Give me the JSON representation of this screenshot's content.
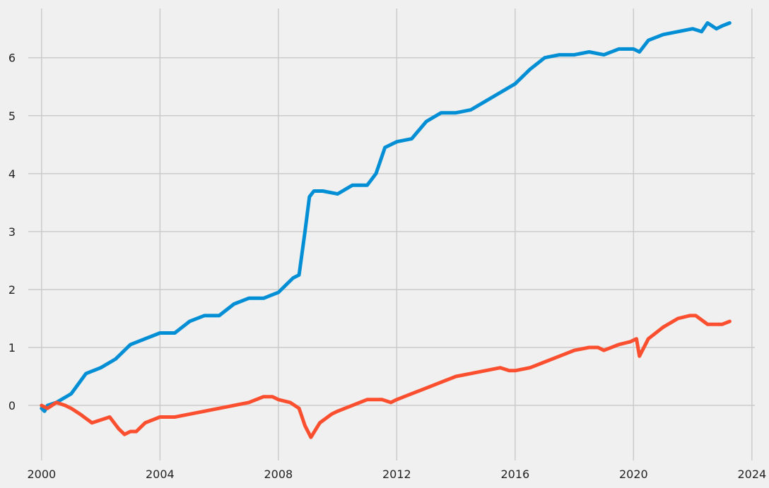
{
  "chart_data": {
    "type": "line",
    "title": "",
    "xlabel": "",
    "ylabel": "",
    "grid": true,
    "legend": "none",
    "xlim": [
      1999.55,
      2024.1
    ],
    "ylim": [
      -0.95,
      6.85
    ],
    "x_ticks": [
      {
        "value": 2000,
        "label": "2000"
      },
      {
        "value": 2004,
        "label": "2004"
      },
      {
        "value": 2008,
        "label": "2008"
      },
      {
        "value": 2012,
        "label": "2012"
      },
      {
        "value": 2016,
        "label": "2016"
      },
      {
        "value": 2020,
        "label": "2020"
      },
      {
        "value": 2024,
        "label": "2024"
      }
    ],
    "y_ticks": [
      {
        "value": 0,
        "label": "0"
      },
      {
        "value": 1,
        "label": "1"
      },
      {
        "value": 2,
        "label": "2"
      },
      {
        "value": 3,
        "label": "3"
      },
      {
        "value": 4,
        "label": "4"
      },
      {
        "value": 5,
        "label": "5"
      },
      {
        "value": 6,
        "label": "6"
      }
    ],
    "series": [
      {
        "color": "#008fd5",
        "x": [
          2000.0,
          2000.1,
          2000.2,
          2000.5,
          2001.0,
          2001.5,
          2002.0,
          2002.5,
          2003.0,
          2003.5,
          2004.0,
          2004.5,
          2005.0,
          2005.5,
          2006.0,
          2006.5,
          2007.0,
          2007.5,
          2008.0,
          2008.3,
          2008.5,
          2008.7,
          2008.9,
          2009.05,
          2009.2,
          2009.5,
          2010.0,
          2010.5,
          2011.0,
          2011.3,
          2011.6,
          2011.8,
          2012.0,
          2012.5,
          2013.0,
          2013.5,
          2014.0,
          2014.5,
          2015.0,
          2015.5,
          2016.0,
          2016.5,
          2017.0,
          2017.5,
          2018.0,
          2018.5,
          2019.0,
          2019.5,
          2020.0,
          2020.2,
          2020.5,
          2021.0,
          2021.5,
          2022.0,
          2022.3,
          2022.5,
          2022.8,
          2023.0,
          2023.25
        ],
        "y": [
          -0.05,
          -0.1,
          0.0,
          0.05,
          0.2,
          0.55,
          0.65,
          0.8,
          1.05,
          1.15,
          1.25,
          1.25,
          1.45,
          1.55,
          1.55,
          1.75,
          1.85,
          1.85,
          1.95,
          2.1,
          2.2,
          2.25,
          3.0,
          3.6,
          3.7,
          3.7,
          3.65,
          3.8,
          3.8,
          4.0,
          4.45,
          4.5,
          4.55,
          4.6,
          4.9,
          5.05,
          5.05,
          5.1,
          5.25,
          5.4,
          5.55,
          5.8,
          6.0,
          6.05,
          6.05,
          6.1,
          6.05,
          6.15,
          6.15,
          6.1,
          6.3,
          6.4,
          6.45,
          6.5,
          6.45,
          6.6,
          6.5,
          6.55,
          6.6
        ]
      },
      {
        "color": "#fc4f30",
        "x": [
          2000.0,
          2000.2,
          2000.5,
          2000.8,
          2001.0,
          2001.3,
          2001.7,
          2002.0,
          2002.3,
          2002.6,
          2002.8,
          2003.0,
          2003.2,
          2003.5,
          2004.0,
          2004.5,
          2005.0,
          2005.5,
          2006.0,
          2006.5,
          2007.0,
          2007.5,
          2007.8,
          2008.0,
          2008.4,
          2008.7,
          2008.9,
          2009.1,
          2009.4,
          2009.8,
          2010.0,
          2010.5,
          2011.0,
          2011.5,
          2011.8,
          2012.0,
          2012.5,
          2013.0,
          2013.5,
          2014.0,
          2014.5,
          2015.0,
          2015.5,
          2015.8,
          2016.0,
          2016.5,
          2017.0,
          2017.5,
          2018.0,
          2018.5,
          2018.8,
          2019.0,
          2019.5,
          2019.9,
          2020.1,
          2020.2,
          2020.5,
          2021.0,
          2021.5,
          2021.9,
          2022.1,
          2022.5,
          2022.8,
          2023.0,
          2023.25
        ],
        "y": [
          0.0,
          -0.05,
          0.05,
          0.0,
          -0.05,
          -0.15,
          -0.3,
          -0.25,
          -0.2,
          -0.4,
          -0.5,
          -0.45,
          -0.45,
          -0.3,
          -0.2,
          -0.2,
          -0.15,
          -0.1,
          -0.05,
          0.0,
          0.05,
          0.15,
          0.15,
          0.1,
          0.05,
          -0.05,
          -0.35,
          -0.55,
          -0.3,
          -0.15,
          -0.1,
          0.0,
          0.1,
          0.1,
          0.05,
          0.1,
          0.2,
          0.3,
          0.4,
          0.5,
          0.55,
          0.6,
          0.65,
          0.6,
          0.6,
          0.65,
          0.75,
          0.85,
          0.95,
          1.0,
          1.0,
          0.95,
          1.05,
          1.1,
          1.15,
          0.85,
          1.15,
          1.35,
          1.5,
          1.55,
          1.55,
          1.4,
          1.4,
          1.4,
          1.45
        ]
      }
    ]
  }
}
